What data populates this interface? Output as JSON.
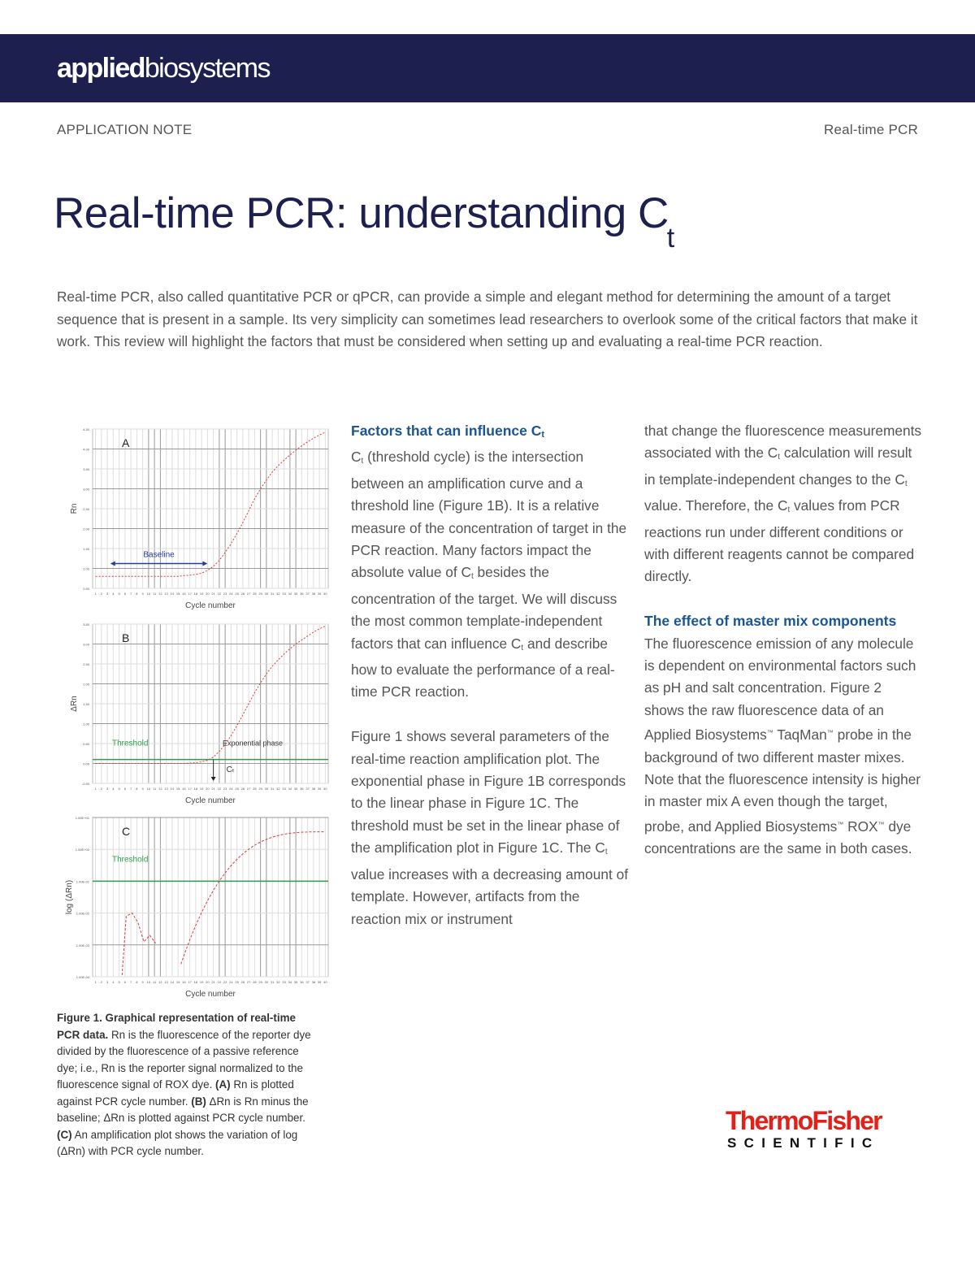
{
  "header": {
    "brand_bold": "applied",
    "brand_regular": "biosystems",
    "band_color": "#1d1f4e",
    "kicker_left": "APPLICATION NOTE",
    "kicker_right": "Real-time PCR"
  },
  "title": {
    "main": "Real-time PCR: understanding C",
    "subscript": "t"
  },
  "intro": "Real-time PCR, also called quantitative PCR or qPCR, can provide a simple and elegant method for determining the amount of a target sequence that is present in a sample. Its very simplicity can sometimes lead researchers to overlook some of the critical factors that make it work. This review will highlight the factors that must be considered when setting up and evaluating a real-time PCR reaction.",
  "section1": {
    "heading": "Factors that can influence C",
    "heading_sub": "t",
    "p1": [
      {
        "t": "C"
      },
      {
        "s": "t"
      },
      {
        "t": " (threshold cycle) is the intersection between an amplification curve and a threshold line (Figure 1B). It is a relative measure of the concentration of target in the PCR reaction. Many factors impact the absolute value of C"
      },
      {
        "s": "t"
      },
      {
        "t": " besides the concentration of the target. We will discuss the most common template-independent factors that can influence C"
      },
      {
        "s": "t"
      },
      {
        "t": " and describe how to evaluate the performance of a real-time PCR reaction."
      }
    ],
    "p2": [
      {
        "t": "Figure 1 shows several parameters of the real-time reaction amplification plot. The exponential phase in Figure 1B corresponds to the linear phase in Figure 1C. The threshold must be set in the linear phase of the amplification plot in Figure 1C. The C"
      },
      {
        "s": "t"
      },
      {
        "t": " value increases with a decreasing amount of template. However, artifacts from the reaction mix or instrument that change the fluorescence measurements associated with the C"
      },
      {
        "s": "t"
      },
      {
        "t": " calculation will result in template-independent changes to the C"
      },
      {
        "s": "t"
      },
      {
        "t": " value. Therefore, the C"
      },
      {
        "s": "t"
      },
      {
        "t": " values from PCR reactions run under different conditions or with different reagents cannot be compared directly."
      }
    ]
  },
  "section2": {
    "heading": "The effect of master mix components",
    "p1": [
      {
        "t": "The fluorescence emission of any molecule is dependent on environmental factors such as pH and salt concentration. Figure 2 shows the raw fluorescence data of an Applied Biosystems"
      },
      {
        "tm": "™"
      },
      {
        "t": " TaqMan"
      },
      {
        "tm": "™"
      },
      {
        "t": " probe in the background of two different master mixes. Note that the fluorescence intensity is higher in master mix A even though the target, probe, and Applied Biosystems"
      },
      {
        "tm": "™"
      },
      {
        "t": " ROX"
      },
      {
        "tm": "™"
      },
      {
        "t": " dye concentrations are the same in both cases."
      }
    ]
  },
  "figure": {
    "caption_bold": "Figure 1. Graphical representation of real-time PCR data.",
    "caption_text": " Rn is the fluorescence of the reporter dye divided by the fluorescence of a passive reference dye; i.e., Rn is the reporter signal normalized to the fluorescence signal of ROX dye. ",
    "caption_a_label": "(A)",
    "caption_a": " Rn is plotted against PCR cycle number. ",
    "caption_b_label": "(B)",
    "caption_b": " ΔRn is Rn minus the baseline; ΔRn is plotted against PCR cycle number. ",
    "caption_c_label": "(C)",
    "caption_c": " An amplification plot shows the variation of log (ΔRn) with PCR cycle number."
  },
  "chart_data": [
    {
      "type": "line",
      "panel": "A",
      "title": "A",
      "xlabel": "Cycle number",
      "ylabel": "Rn",
      "x": [
        1,
        2,
        3,
        4,
        5,
        6,
        7,
        8,
        9,
        10,
        11,
        12,
        13,
        14,
        15,
        16,
        17,
        18,
        19,
        20,
        21,
        22,
        23,
        24,
        25,
        26,
        27,
        28,
        29,
        30,
        31,
        32,
        33,
        34,
        35,
        36,
        37,
        38,
        39,
        40
      ],
      "yticks": [
        "0.50",
        "1.00",
        "1.50",
        "2.00",
        "2.50",
        "3.00",
        "3.50",
        "4.00",
        "4.50"
      ],
      "ylim": [
        0.5,
        4.5
      ],
      "series": [
        {
          "name": "Rn",
          "color": "#e03a3a",
          "values": [
            0.8,
            0.8,
            0.8,
            0.8,
            0.8,
            0.8,
            0.8,
            0.8,
            0.8,
            0.8,
            0.8,
            0.8,
            0.8,
            0.8,
            0.8,
            0.82,
            0.83,
            0.85,
            0.88,
            0.95,
            1.05,
            1.2,
            1.4,
            1.62,
            1.88,
            2.15,
            2.45,
            2.75,
            3.0,
            3.22,
            3.42,
            3.58,
            3.72,
            3.85,
            3.97,
            4.08,
            4.18,
            4.27,
            4.35,
            4.42
          ]
        }
      ],
      "annotations": [
        {
          "text": "Baseline",
          "color": "#2a3aa0",
          "x_range": [
            3,
            20
          ]
        }
      ],
      "grid": true
    },
    {
      "type": "line",
      "panel": "B",
      "title": "B",
      "xlabel": "Cycle number",
      "ylabel": "ΔRn",
      "x": [
        1,
        2,
        3,
        4,
        5,
        6,
        7,
        8,
        9,
        10,
        11,
        12,
        13,
        14,
        15,
        16,
        17,
        18,
        19,
        20,
        21,
        22,
        23,
        24,
        25,
        26,
        27,
        28,
        29,
        30,
        31,
        32,
        33,
        34,
        35,
        36,
        37,
        38,
        39,
        40
      ],
      "yticks": [
        "-0.50",
        "0.00",
        "0.50",
        "1.00",
        "1.50",
        "2.00",
        "2.50",
        "3.00",
        "3.50"
      ],
      "ylim": [
        -0.5,
        3.5
      ],
      "series": [
        {
          "name": "ΔRn",
          "color": "#e03a3a",
          "values": [
            0,
            0,
            0,
            0,
            0,
            0,
            0,
            0,
            0,
            0,
            0,
            0,
            0,
            0,
            0,
            0,
            0.01,
            0.02,
            0.04,
            0.08,
            0.16,
            0.3,
            0.48,
            0.7,
            0.95,
            1.22,
            1.5,
            1.78,
            2.02,
            2.25,
            2.44,
            2.6,
            2.75,
            2.88,
            3.0,
            3.1,
            3.2,
            3.3,
            3.38,
            3.45
          ]
        }
      ],
      "threshold": {
        "value": 0.1,
        "label": "Threshold",
        "color": "#2e9e4a"
      },
      "annotations": [
        {
          "text": "Exponential phase"
        },
        {
          "text": "Ct",
          "x": 21
        }
      ],
      "grid": true
    },
    {
      "type": "line",
      "panel": "C",
      "title": "C",
      "xlabel": "Cycle number",
      "ylabel": "log (ΔRn)",
      "x": [
        1,
        2,
        3,
        4,
        5,
        6,
        7,
        8,
        9,
        10,
        11,
        12,
        13,
        14,
        15,
        16,
        17,
        18,
        19,
        20,
        21,
        22,
        23,
        24,
        25,
        26,
        27,
        28,
        29,
        30,
        31,
        32,
        33,
        34,
        35,
        36,
        37,
        38,
        39,
        40
      ],
      "yticks": [
        "1.00E-04",
        "1.00E-03",
        "1.00E-02",
        "1.00E-01",
        "1.00E+00",
        "1.00E+01"
      ],
      "yscale": "log",
      "threshold": {
        "value": 0.1,
        "label": "Threshold",
        "color": "#2e9e4a"
      },
      "series": [
        {
          "name": "log ΔRn",
          "color": "#e03a3a"
        }
      ],
      "grid": true
    }
  ],
  "footer": {
    "logo_top": "ThermoFisher",
    "logo_bottom": "SCIENTIFIC",
    "logo_color": "#e32118"
  }
}
